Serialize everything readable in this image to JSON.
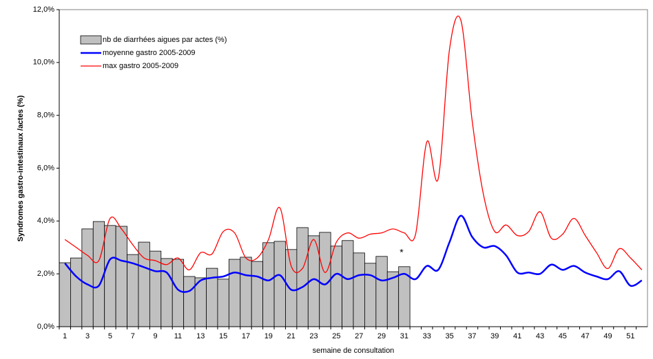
{
  "chart_data": {
    "type": "bar-line",
    "x_label": "semaine de consultation",
    "y_label": "Syndromes gastro-intestinaux /actes (%)",
    "annotation": "*",
    "categories": [
      "1",
      null,
      "3",
      null,
      "5",
      null,
      "7",
      null,
      "9",
      null,
      "11",
      null,
      "13",
      null,
      "15",
      null,
      "17",
      null,
      "19",
      null,
      "21",
      null,
      "23",
      null,
      "25",
      null,
      "27",
      null,
      "29",
      null,
      "31",
      null,
      "33",
      null,
      "35",
      null,
      "37",
      null,
      "39",
      null,
      "41",
      null,
      "43",
      null,
      "45",
      null,
      "47",
      null,
      "49",
      null,
      "51",
      null
    ],
    "ylim": [
      0,
      12
    ],
    "yticks": [
      {
        "value": 0,
        "label": "0,0%"
      },
      {
        "value": 2,
        "label": "2,0%"
      },
      {
        "value": 4,
        "label": "4,0%"
      },
      {
        "value": 6,
        "label": "6,0%"
      },
      {
        "value": 8,
        "label": "8,0%"
      },
      {
        "value": 10,
        "label": "10,0%"
      },
      {
        "value": 12,
        "label": "12,0%"
      }
    ],
    "series": [
      {
        "name": "nb de diarrhées aigues par actes (%)",
        "kind": "bar",
        "color": "#c0c0c0",
        "values": [
          2.42,
          2.6,
          3.7,
          3.98,
          3.83,
          3.8,
          2.73,
          3.2,
          2.86,
          2.58,
          2.55,
          1.9,
          1.85,
          2.21,
          1.8,
          2.55,
          2.63,
          2.47,
          3.18,
          3.23,
          2.92,
          3.75,
          3.44,
          3.57,
          3.05,
          3.26,
          2.79,
          2.4,
          2.66,
          2.08,
          2.27,
          null,
          null,
          null,
          null,
          null,
          null,
          null,
          null,
          null,
          null,
          null,
          null,
          null,
          null,
          null,
          null,
          null,
          null,
          null,
          null,
          null
        ]
      },
      {
        "name": "moyenne gastro 2005-2009",
        "kind": "line",
        "color": "#0000ff",
        "values": [
          2.4,
          1.9,
          1.6,
          1.55,
          2.55,
          2.5,
          2.4,
          2.25,
          2.1,
          2.05,
          1.4,
          1.35,
          1.75,
          1.85,
          1.9,
          2.05,
          1.95,
          1.9,
          1.75,
          1.95,
          1.4,
          1.5,
          1.8,
          1.6,
          2.0,
          1.8,
          1.95,
          1.95,
          1.75,
          1.85,
          2.0,
          1.8,
          2.3,
          2.15,
          3.2,
          4.2,
          3.4,
          3.0,
          3.05,
          2.7,
          2.05,
          2.05,
          2.0,
          2.35,
          2.15,
          2.3,
          2.05,
          1.9,
          1.8,
          2.1,
          1.55,
          1.75
        ]
      },
      {
        "name": "max gastro 2005-2009",
        "kind": "line",
        "color": "#ff0000",
        "values": [
          3.3,
          3.0,
          2.7,
          2.5,
          4.1,
          3.7,
          3.1,
          2.6,
          2.5,
          2.35,
          2.6,
          2.15,
          2.8,
          2.75,
          3.6,
          3.55,
          2.6,
          2.6,
          3.3,
          4.5,
          2.3,
          2.2,
          3.3,
          2.05,
          3.2,
          3.55,
          3.35,
          3.5,
          3.55,
          3.7,
          3.55,
          3.5,
          7.0,
          5.6,
          10.5,
          11.6,
          7.8,
          5.0,
          3.6,
          3.85,
          3.45,
          3.6,
          4.35,
          3.35,
          3.5,
          4.1,
          3.45,
          2.8,
          2.2,
          2.95,
          2.6,
          2.15
        ]
      }
    ]
  }
}
